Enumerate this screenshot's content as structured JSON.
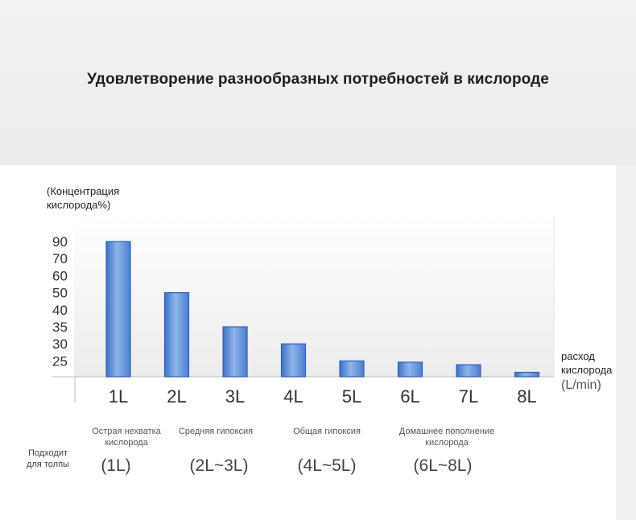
{
  "title": "Удовлетворение разнообразных потребностей в кислороде",
  "chart_data": {
    "type": "bar",
    "ylabel_lines": [
      "(Концентрация",
      "кислорода%)"
    ],
    "xlabel_lines": [
      "расход",
      "кислорода"
    ],
    "x_unit": "(L/min)",
    "y_ticks": [
      "90",
      "70",
      "60",
      "50",
      "40",
      "35",
      "30",
      "25"
    ],
    "categories": [
      "1L",
      "2L",
      "3L",
      "4L",
      "5L",
      "6L",
      "7L",
      "8L"
    ],
    "values": [
      90,
      50,
      35,
      30,
      25,
      23,
      19,
      7
    ],
    "y_axis_note": "non-linear tick spacing; values read at tick positions",
    "grid": false,
    "bar_color": "#4a7fd0"
  },
  "usage": {
    "row_label_lines": [
      "Подходит",
      "для толпы"
    ],
    "groups": [
      {
        "desc_lines": [
          "Острая нехватка",
          "кислорода"
        ],
        "range": "(1L)"
      },
      {
        "desc_lines": [
          "Средняя гипоксия"
        ],
        "range": "(2L~3L)"
      },
      {
        "desc_lines": [
          "Общая гипоксия"
        ],
        "range": "(4L~5L)"
      },
      {
        "desc_lines": [
          "Домашнее пополнение",
          "кислорода"
        ],
        "range": "(6L~8L)"
      }
    ]
  }
}
